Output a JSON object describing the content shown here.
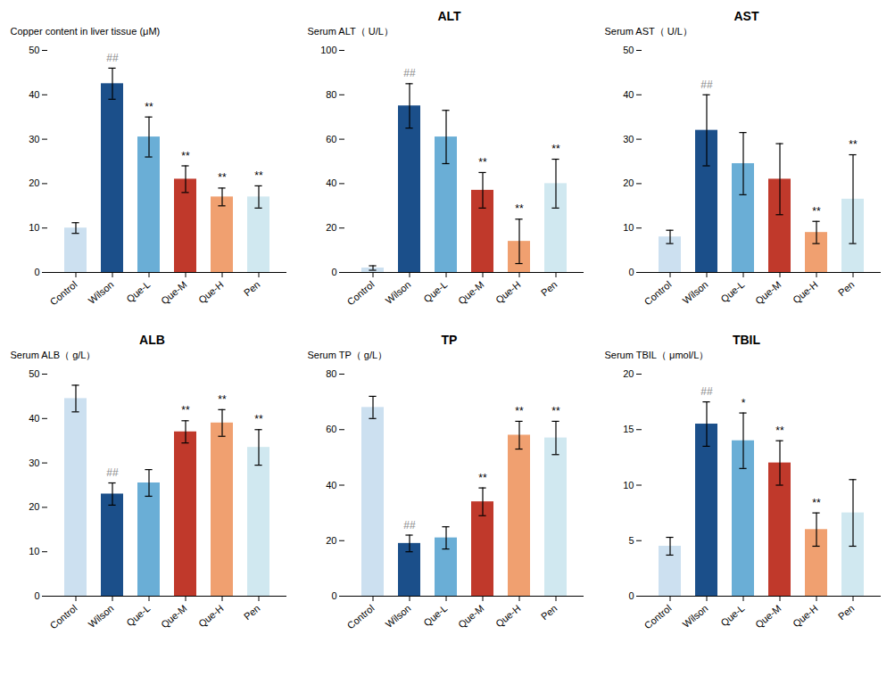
{
  "chart_data": [
    {
      "type": "bar",
      "categories": [
        "Control",
        "Wilson",
        "Que-L",
        "Que-M",
        "Que-H",
        "Pen"
      ],
      "values": [
        10.0,
        42.5,
        30.5,
        21.0,
        17.0,
        17.0
      ],
      "errors": [
        1.2,
        3.5,
        4.5,
        3.0,
        2.0,
        2.5
      ],
      "colors": [
        "#cce0f0",
        "#1b4f8a",
        "#6aaed6",
        "#c0392b",
        "#f0a070",
        "#d0e8f0"
      ],
      "ylabel": "Copper content in liver tissue (μM)",
      "ylim": [
        0,
        50
      ],
      "yticks": [
        0,
        10,
        20,
        30,
        40,
        50
      ],
      "annotations": [
        {
          "category": "Wilson",
          "text": "##"
        },
        {
          "category": "Que-L",
          "text": "**"
        },
        {
          "category": "Que-M",
          "text": "**"
        },
        {
          "category": "Que-H",
          "text": "**"
        },
        {
          "category": "Pen",
          "text": "**"
        }
      ]
    },
    {
      "type": "bar",
      "title": "ALT",
      "categories": [
        "Control",
        "Wilson",
        "Que-L",
        "Que-M",
        "Que-H",
        "Pen"
      ],
      "values": [
        2.0,
        75.0,
        61.0,
        37.0,
        14.0,
        40.0
      ],
      "errors": [
        1.0,
        10.0,
        12.0,
        8.0,
        10.0,
        11.0
      ],
      "colors": [
        "#cce0f0",
        "#1b4f8a",
        "#6aaed6",
        "#c0392b",
        "#f0a070",
        "#d0e8f0"
      ],
      "ylabel": "Serum ALT（ U/L）",
      "ylim": [
        0,
        100
      ],
      "yticks": [
        0,
        20,
        40,
        60,
        80,
        100
      ],
      "annotations": [
        {
          "category": "Wilson",
          "text": "##"
        },
        {
          "category": "Que-M",
          "text": "**"
        },
        {
          "category": "Que-H",
          "text": "**"
        },
        {
          "category": "Pen",
          "text": "**"
        }
      ]
    },
    {
      "type": "bar",
      "title": "AST",
      "categories": [
        "Control",
        "Wilson",
        "Que-L",
        "Que-M",
        "Que-H",
        "Pen"
      ],
      "values": [
        8.0,
        32.0,
        24.5,
        21.0,
        9.0,
        16.5
      ],
      "errors": [
        1.5,
        8.0,
        7.0,
        8.0,
        2.5,
        10.0
      ],
      "colors": [
        "#cce0f0",
        "#1b4f8a",
        "#6aaed6",
        "#c0392b",
        "#f0a070",
        "#d0e8f0"
      ],
      "ylabel": "Serum AST（ U/L）",
      "ylim": [
        0,
        50
      ],
      "yticks": [
        0,
        10,
        20,
        30,
        40,
        50
      ],
      "annotations": [
        {
          "category": "Wilson",
          "text": "##"
        },
        {
          "category": "Que-H",
          "text": "**"
        },
        {
          "category": "Pen",
          "text": "**"
        }
      ]
    },
    {
      "type": "bar",
      "title": "ALB",
      "categories": [
        "Control",
        "Wilson",
        "Que-L",
        "Que-M",
        "Que-H",
        "Pen"
      ],
      "values": [
        44.5,
        23.0,
        25.5,
        37.0,
        39.0,
        33.5
      ],
      "errors": [
        3.0,
        2.5,
        3.0,
        2.5,
        3.0,
        4.0
      ],
      "colors": [
        "#cce0f0",
        "#1b4f8a",
        "#6aaed6",
        "#c0392b",
        "#f0a070",
        "#d0e8f0"
      ],
      "ylabel": "Serum ALB（ g/L）",
      "ylim": [
        0,
        50
      ],
      "yticks": [
        0,
        10,
        20,
        30,
        40,
        50
      ],
      "annotations": [
        {
          "category": "Wilson",
          "text": "##"
        },
        {
          "category": "Que-M",
          "text": "**"
        },
        {
          "category": "Que-H",
          "text": "**"
        },
        {
          "category": "Pen",
          "text": "**"
        }
      ]
    },
    {
      "type": "bar",
      "title": "TP",
      "categories": [
        "Control",
        "Wilson",
        "Que-L",
        "Que-M",
        "Que-H",
        "Pen"
      ],
      "values": [
        68.0,
        19.0,
        21.0,
        34.0,
        58.0,
        57.0
      ],
      "errors": [
        4.0,
        3.0,
        4.0,
        5.0,
        5.0,
        6.0
      ],
      "colors": [
        "#cce0f0",
        "#1b4f8a",
        "#6aaed6",
        "#c0392b",
        "#f0a070",
        "#d0e8f0"
      ],
      "ylabel": "Serum TP（ g/L）",
      "ylim": [
        0,
        80
      ],
      "yticks": [
        0,
        20,
        40,
        60,
        80
      ],
      "annotations": [
        {
          "category": "Wilson",
          "text": "##"
        },
        {
          "category": "Que-M",
          "text": "**"
        },
        {
          "category": "Que-H",
          "text": "**"
        },
        {
          "category": "Pen",
          "text": "**"
        }
      ]
    },
    {
      "type": "bar",
      "title": "TBIL",
      "categories": [
        "Control",
        "Wilson",
        "Que-L",
        "Que-M",
        "Que-H",
        "Pen"
      ],
      "values": [
        4.5,
        15.5,
        14.0,
        12.0,
        6.0,
        7.5
      ],
      "errors": [
        0.8,
        2.0,
        2.5,
        2.0,
        1.5,
        3.0
      ],
      "colors": [
        "#cce0f0",
        "#1b4f8a",
        "#6aaed6",
        "#c0392b",
        "#f0a070",
        "#d0e8f0"
      ],
      "ylabel": "Serum TBIL（ μmol/L）",
      "ylim": [
        0,
        20
      ],
      "yticks": [
        0,
        5,
        10,
        15,
        20
      ],
      "annotations": [
        {
          "category": "Wilson",
          "text": "##"
        },
        {
          "category": "Que-L",
          "text": "*"
        },
        {
          "category": "Que-M",
          "text": "**"
        },
        {
          "category": "Que-H",
          "text": "**"
        }
      ]
    }
  ]
}
